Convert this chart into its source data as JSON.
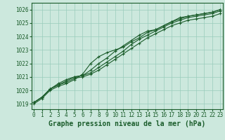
{
  "title": "Graphe pression niveau de la mer (hPa)",
  "background_color": "#cce8dd",
  "grid_color": "#99ccbb",
  "line_color": "#1a5c2a",
  "x_ticks": [
    0,
    1,
    2,
    3,
    4,
    5,
    6,
    7,
    8,
    9,
    10,
    11,
    12,
    13,
    14,
    15,
    16,
    17,
    18,
    19,
    20,
    21,
    22,
    23
  ],
  "y_ticks": [
    1019,
    1020,
    1021,
    1022,
    1023,
    1024,
    1025,
    1026
  ],
  "ylim": [
    1018.6,
    1026.5
  ],
  "xlim": [
    -0.3,
    23.3
  ],
  "series": [
    [
      1019.1,
      1019.5,
      1020.1,
      1020.4,
      1020.7,
      1021.0,
      1021.1,
      1021.5,
      1022.0,
      1022.4,
      1022.9,
      1023.3,
      1023.7,
      1024.1,
      1024.4,
      1024.5,
      1024.8,
      1025.1,
      1025.3,
      1025.5,
      1025.6,
      1025.7,
      1025.8,
      1026.0
    ],
    [
      1019.1,
      1019.5,
      1020.1,
      1020.4,
      1020.6,
      1020.9,
      1021.0,
      1021.2,
      1021.5,
      1021.9,
      1022.3,
      1022.7,
      1023.1,
      1023.5,
      1023.9,
      1024.2,
      1024.5,
      1024.8,
      1025.0,
      1025.2,
      1025.3,
      1025.4,
      1025.5,
      1025.7
    ],
    [
      1019.1,
      1019.5,
      1020.1,
      1020.5,
      1020.8,
      1021.0,
      1021.1,
      1021.3,
      1021.7,
      1022.1,
      1022.5,
      1022.9,
      1023.4,
      1023.8,
      1024.1,
      1024.4,
      1024.7,
      1025.0,
      1025.2,
      1025.4,
      1025.5,
      1025.6,
      1025.7,
      1025.9
    ],
    [
      1019.0,
      1019.4,
      1020.0,
      1020.3,
      1020.5,
      1020.8,
      1021.2,
      1022.0,
      1022.5,
      1022.8,
      1023.0,
      1023.2,
      1023.6,
      1023.9,
      1024.3,
      1024.5,
      1024.8,
      1025.1,
      1025.4,
      1025.5,
      1025.6,
      1025.7,
      1025.8,
      1026.0
    ]
  ],
  "marker": "+",
  "markersize": 3,
  "linewidth": 0.8,
  "title_fontsize": 7,
  "tick_fontsize": 5.5
}
